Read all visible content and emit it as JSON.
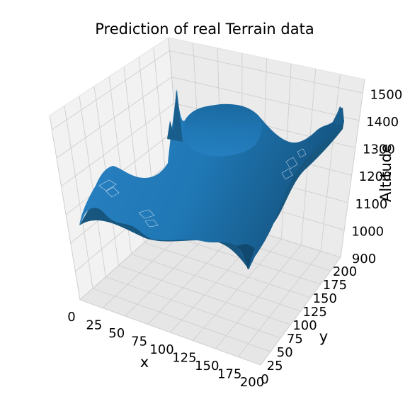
{
  "chart_data": {
    "type": "surface3d",
    "title": "Prediction of real Terrain data",
    "xlabel": "x",
    "ylabel": "y",
    "zlabel": "Altitude",
    "xlim": [
      0,
      200
    ],
    "ylim": [
      0,
      200
    ],
    "zlim": [
      900,
      1550
    ],
    "xticks": [
      "0",
      "25",
      "50",
      "75",
      "100",
      "125",
      "150",
      "175",
      "200"
    ],
    "yticks": [
      "0",
      "25",
      "50",
      "75",
      "100",
      "125",
      "150",
      "175",
      "200"
    ],
    "zticks": [
      "900",
      "1000",
      "1100",
      "1200",
      "1300",
      "1400",
      "1500"
    ],
    "grid": true,
    "surface_color": "#1f77b4",
    "pane_color": "#f2f2f2",
    "surface_points": [
      {
        "x": 0,
        "y": 0,
        "z": 1100
      },
      {
        "x": 0,
        "y": 50,
        "z": 1120
      },
      {
        "x": 0,
        "y": 100,
        "z": 1180
      },
      {
        "x": 0,
        "y": 150,
        "z": 1330
      },
      {
        "x": 0,
        "y": 200,
        "z": 1360
      },
      {
        "x": 100,
        "y": 0,
        "z": 1310
      },
      {
        "x": 100,
        "y": 100,
        "z": 1500
      },
      {
        "x": 200,
        "y": 0,
        "z": 1010
      },
      {
        "x": 200,
        "y": 100,
        "z": 1200
      },
      {
        "x": 200,
        "y": 200,
        "z": 1430
      },
      {
        "x": 150,
        "y": 150,
        "z": 1280
      },
      {
        "x": 180,
        "y": 30,
        "z": 900
      }
    ]
  }
}
